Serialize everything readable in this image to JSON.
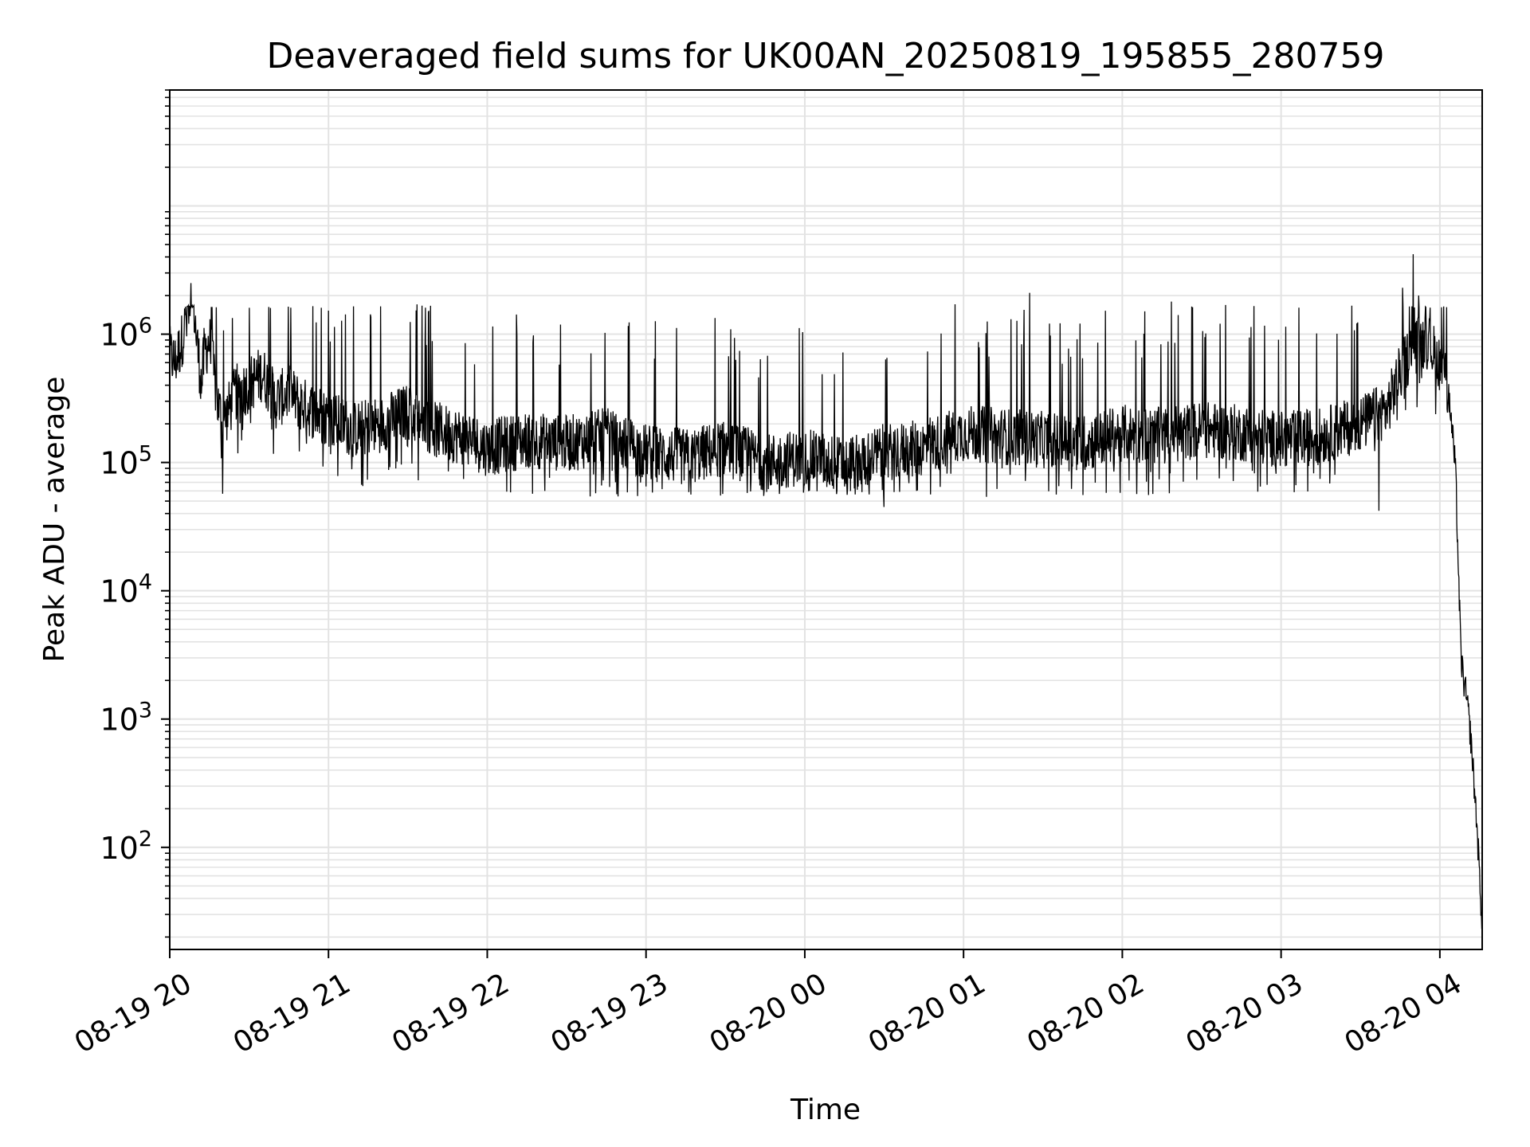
{
  "chart_data": {
    "type": "line",
    "title": "Deaveraged field sums for UK00AN_20250819_195855_280759",
    "xlabel": "Time",
    "ylabel": "Peak ADU - average",
    "yscale": "log",
    "ylim": [
      16,
      80000000
    ],
    "xlim": [
      "2025-08-19 20:00",
      "2025-08-20 04:16"
    ],
    "grid": true,
    "legend": "none",
    "line_color": "#000000",
    "grid_color": "#e3e3e3",
    "x_ticks": [
      {
        "value": "2025-08-19 20:00",
        "label": "08-19 20"
      },
      {
        "value": "2025-08-19 21:00",
        "label": "08-19 21"
      },
      {
        "value": "2025-08-19 22:00",
        "label": "08-19 22"
      },
      {
        "value": "2025-08-19 23:00",
        "label": "08-19 23"
      },
      {
        "value": "2025-08-20 00:00",
        "label": "08-20 00"
      },
      {
        "value": "2025-08-20 01:00",
        "label": "08-20 01"
      },
      {
        "value": "2025-08-20 02:00",
        "label": "08-20 02"
      },
      {
        "value": "2025-08-20 03:00",
        "label": "08-20 03"
      },
      {
        "value": "2025-08-20 04:00",
        "label": "08-20 04"
      }
    ],
    "y_ticks": [
      {
        "value": 100,
        "base": "10",
        "exp": "2"
      },
      {
        "value": 1000,
        "base": "10",
        "exp": "3"
      },
      {
        "value": 10000,
        "base": "10",
        "exp": "4"
      },
      {
        "value": 100000,
        "base": "10",
        "exp": "5"
      },
      {
        "value": 1000000,
        "base": "10",
        "exp": "6"
      }
    ],
    "series": [
      {
        "x": [
          "2025-08-19 20:00",
          "2025-08-19 20:02",
          "2025-08-19 20:04",
          "2025-08-19 20:06",
          "2025-08-19 20:07",
          "2025-08-19 20:08",
          "2025-08-19 20:09",
          "2025-08-19 20:10",
          "2025-08-19 20:12",
          "2025-08-19 20:13",
          "2025-08-19 20:15",
          "2025-08-19 20:18",
          "2025-08-19 20:20",
          "2025-08-19 20:25",
          "2025-08-19 20:30",
          "2025-08-19 20:35",
          "2025-08-19 20:40",
          "2025-08-19 20:45",
          "2025-08-19 20:50",
          "2025-08-19 21:00",
          "2025-08-19 21:10",
          "2025-08-19 21:20",
          "2025-08-19 21:30",
          "2025-08-19 21:40",
          "2025-08-19 21:50",
          "2025-08-19 22:00",
          "2025-08-19 22:15",
          "2025-08-19 22:30",
          "2025-08-19 22:45",
          "2025-08-19 23:00",
          "2025-08-19 23:15",
          "2025-08-19 23:30",
          "2025-08-19 23:45",
          "2025-08-20 00:00",
          "2025-08-20 00:15",
          "2025-08-20 00:30",
          "2025-08-20 00:45",
          "2025-08-20 01:00",
          "2025-08-20 01:15",
          "2025-08-20 01:30",
          "2025-08-20 01:45",
          "2025-08-20 02:00",
          "2025-08-20 02:15",
          "2025-08-20 02:30",
          "2025-08-20 02:45",
          "2025-08-20 03:00",
          "2025-08-20 03:15",
          "2025-08-20 03:30",
          "2025-08-20 03:40",
          "2025-08-20 03:45",
          "2025-08-20 03:50",
          "2025-08-20 03:55",
          "2025-08-20 04:00",
          "2025-08-20 04:02",
          "2025-08-20 04:04",
          "2025-08-20 04:05",
          "2025-08-20 04:06",
          "2025-08-20 04:07",
          "2025-08-20 04:08",
          "2025-08-20 04:09",
          "2025-08-20 04:10",
          "2025-08-20 04:11",
          "2025-08-20 04:12",
          "2025-08-20 04:13",
          "2025-08-20 04:14",
          "2025-08-20 04:15",
          "2025-08-20 04:16"
        ],
        "y": [
          700000,
          600000,
          800000,
          1200000,
          1500000,
          2500000,
          1800000,
          1000000,
          400000,
          700000,
          900000,
          300000,
          200000,
          350000,
          400000,
          500000,
          300000,
          350000,
          280000,
          220000,
          180000,
          200000,
          250000,
          180000,
          160000,
          130000,
          150000,
          140000,
          160000,
          120000,
          110000,
          130000,
          100000,
          110000,
          95000,
          120000,
          130000,
          170000,
          160000,
          150000,
          140000,
          170000,
          160000,
          180000,
          170000,
          150000,
          160000,
          200000,
          260000,
          500000,
          800000,
          900000,
          600000,
          500000,
          250000,
          150000,
          80000,
          15000,
          3000,
          2000,
          1500,
          1000,
          600,
          300,
          150,
          60,
          25
        ]
      }
    ],
    "variability": {
      "typical_low": 60000,
      "typical_high": 1600000,
      "peaks": [
        {
          "x": "2025-08-19 20:08",
          "y": 2500000
        },
        {
          "x": "2025-08-20 01:25",
          "y": 2100000
        },
        {
          "x": "2025-08-20 03:46",
          "y": 2300000
        },
        {
          "x": "2025-08-20 03:50",
          "y": 4200000
        },
        {
          "x": "2025-08-20 03:52",
          "y": 2000000
        }
      ],
      "dips": [
        {
          "x": "2025-08-19 20:20",
          "y": 57000
        },
        {
          "x": "2025-08-20 00:30",
          "y": 45000
        },
        {
          "x": "2025-08-20 03:37",
          "y": 42000
        }
      ]
    }
  }
}
